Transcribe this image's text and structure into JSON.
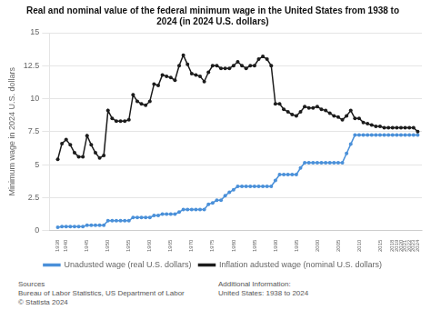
{
  "chart_data": {
    "type": "line",
    "title": "Real and nominal value of the federal minimum wage in the United States from 1938 to\n2024 (in 2024 U.S. dollars)",
    "ylabel": "Minimum wage in 2024 U.S. dollars",
    "x": [
      1938,
      1939,
      1940,
      1941,
      1942,
      1943,
      1944,
      1945,
      1946,
      1947,
      1948,
      1949,
      1950,
      1951,
      1952,
      1953,
      1954,
      1955,
      1956,
      1957,
      1958,
      1959,
      1960,
      1961,
      1962,
      1963,
      1964,
      1965,
      1966,
      1967,
      1968,
      1969,
      1970,
      1971,
      1972,
      1973,
      1974,
      1975,
      1976,
      1977,
      1978,
      1979,
      1980,
      1981,
      1982,
      1983,
      1984,
      1985,
      1986,
      1987,
      1988,
      1989,
      1990,
      1991,
      1992,
      1993,
      1994,
      1995,
      1996,
      1997,
      1998,
      1999,
      2000,
      2001,
      2002,
      2003,
      2004,
      2005,
      2006,
      2007,
      2008,
      2009,
      2010,
      2011,
      2012,
      2013,
      2014,
      2015,
      2016,
      2017,
      2018,
      2019,
      2020,
      2021,
      2022,
      2023,
      2024
    ],
    "series": [
      {
        "name": "Inflation adusted wage (nominal U.S. dollars)",
        "color": "#1c1c1c",
        "values": [
          5.4,
          6.6,
          6.9,
          6.5,
          5.9,
          5.6,
          5.6,
          7.2,
          6.5,
          5.9,
          5.5,
          5.7,
          9.1,
          8.5,
          8.3,
          8.3,
          8.3,
          8.4,
          10.3,
          9.8,
          9.6,
          9.5,
          9.8,
          11.1,
          11.0,
          11.8,
          11.7,
          11.6,
          11.4,
          12.5,
          13.3,
          12.6,
          11.9,
          11.8,
          11.7,
          11.3,
          12.0,
          12.5,
          12.5,
          12.3,
          12.3,
          12.3,
          12.5,
          12.8,
          12.5,
          12.3,
          12.5,
          12.5,
          13.0,
          13.2,
          13.0,
          12.5,
          9.6,
          9.6,
          9.2,
          9.0,
          8.8,
          8.7,
          9.0,
          9.4,
          9.3,
          9.3,
          9.4,
          9.2,
          9.1,
          8.9,
          8.7,
          8.6,
          8.4,
          8.7,
          9.1,
          8.5,
          8.5,
          8.2,
          8.1,
          8.0,
          7.9,
          7.9,
          7.8,
          7.8,
          7.8,
          7.8,
          7.8,
          7.8,
          7.8,
          7.8,
          7.5
        ]
      },
      {
        "name": "Unadusted wage (real U.S. dollars)",
        "color": "#4a90d9",
        "values": [
          0.25,
          0.3,
          0.3,
          0.3,
          0.3,
          0.3,
          0.3,
          0.4,
          0.4,
          0.4,
          0.4,
          0.4,
          0.75,
          0.75,
          0.75,
          0.75,
          0.75,
          0.75,
          1.0,
          1.0,
          1.0,
          1.0,
          1.0,
          1.15,
          1.15,
          1.25,
          1.25,
          1.25,
          1.25,
          1.4,
          1.6,
          1.6,
          1.6,
          1.6,
          1.6,
          1.6,
          2.0,
          2.1,
          2.3,
          2.3,
          2.65,
          2.9,
          3.1,
          3.35,
          3.35,
          3.35,
          3.35,
          3.35,
          3.35,
          3.35,
          3.35,
          3.35,
          3.8,
          4.25,
          4.25,
          4.25,
          4.25,
          4.25,
          4.75,
          5.15,
          5.15,
          5.15,
          5.15,
          5.15,
          5.15,
          5.15,
          5.15,
          5.15,
          5.15,
          5.85,
          6.55,
          7.25,
          7.25,
          7.25,
          7.25,
          7.25,
          7.25,
          7.25,
          7.25,
          7.25,
          7.25,
          7.25,
          7.25,
          7.25,
          7.25,
          7.25,
          7.25
        ]
      }
    ],
    "xlim": [
      1936,
      2025
    ],
    "xticks": [
      1938,
      1940,
      1945,
      1950,
      1955,
      1960,
      1965,
      1970,
      1975,
      1980,
      1985,
      1990,
      1995,
      2000,
      2005,
      2010,
      2015,
      2018,
      2019,
      2020,
      2021,
      2022,
      2023,
      2024
    ],
    "ylim": [
      0,
      15
    ],
    "yticks": [
      0,
      2.5,
      5,
      7.5,
      10,
      12.5,
      15
    ],
    "grid": "y",
    "legend": "bottom",
    "marker": "circle",
    "annotations": [
      "Sources\nBureau of Labor Statistics, US Department of Labor\n© Statista 2024",
      "Additional Information:\nUnited States: 1938 to 2024"
    ]
  }
}
